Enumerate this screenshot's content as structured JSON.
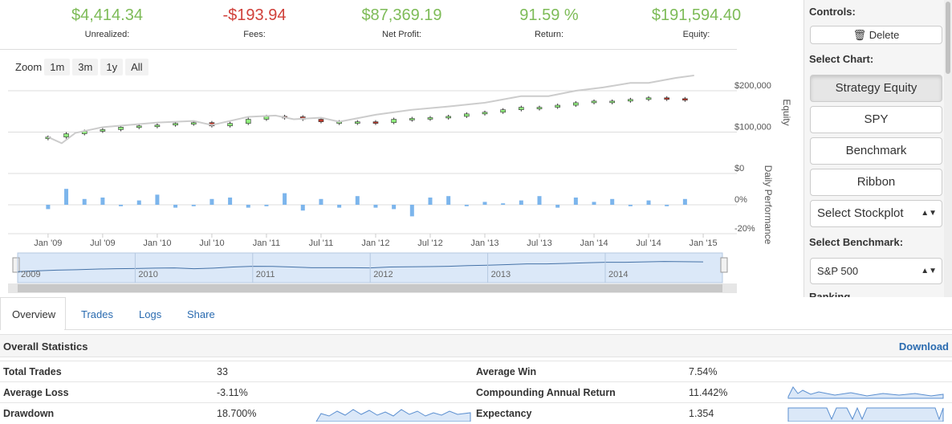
{
  "stats": [
    {
      "value": "$4,414.34",
      "label": "Unrealized:"
    },
    {
      "value": "-$193.94",
      "label": "Fees:"
    },
    {
      "value": "$87,369.19",
      "label": "Net Profit:"
    },
    {
      "value": "91.59 %",
      "label": "Return:"
    },
    {
      "value": "$191,594.40",
      "label": "Equity:"
    }
  ],
  "zoom": {
    "label": "Zoom",
    "buttons": [
      "1m",
      "3m",
      "1y",
      "All"
    ]
  },
  "chart_data": {
    "type": "candlestick",
    "ylabel": "Equity",
    "y2label": "Daily Performance",
    "xlim": [
      -4.4,
      75.7
    ],
    "xticks": [
      {
        "value": 0,
        "label": "Jan '09"
      },
      {
        "value": 6,
        "label": "Jul '09"
      },
      {
        "value": 12,
        "label": "Jan '10"
      },
      {
        "value": 18,
        "label": "Jul '10"
      },
      {
        "value": 24,
        "label": "Jan '11"
      },
      {
        "value": 30,
        "label": "Jul '11"
      },
      {
        "value": 36,
        "label": "Jan '12"
      },
      {
        "value": 42,
        "label": "Jul '12"
      },
      {
        "value": 48,
        "label": "Jan '13"
      },
      {
        "value": 54,
        "label": "Jul '13"
      },
      {
        "value": 60,
        "label": "Jan '14"
      },
      {
        "value": 66,
        "label": "Jul '14"
      },
      {
        "value": 72,
        "label": "Jan '15"
      }
    ],
    "ylim": [
      0,
      240000
    ],
    "yticks": [
      {
        "value": 0,
        "label": "$0"
      },
      {
        "value": 100000,
        "label": "$100,000"
      },
      {
        "value": 200000,
        "label": "$200,000"
      }
    ],
    "y2lim": [
      -20,
      20
    ],
    "y2ticks": [
      {
        "value": 0,
        "label": "0%"
      },
      {
        "value": -20,
        "label": "-20%"
      }
    ],
    "series": [
      {
        "name": "Strategy Equity",
        "color": "#333333",
        "up_color": "#90ed7d",
        "down_color": "#c0392b",
        "x": [
          0,
          2,
          4,
          6,
          8,
          10,
          12,
          14,
          16,
          18,
          20,
          22,
          24,
          26,
          28,
          30,
          32,
          34,
          36,
          38,
          40,
          42,
          44,
          46,
          48,
          50,
          52,
          54,
          56,
          58,
          60,
          62,
          64,
          66,
          68,
          70
        ],
        "values": [
          88000,
          96000,
          102000,
          106000,
          112000,
          115000,
          117000,
          121000,
          123000,
          115000,
          121000,
          131000,
          138000,
          137000,
          131000,
          125000,
          125000,
          125000,
          123000,
          131000,
          133000,
          135000,
          138000,
          144000,
          148000,
          154000,
          160000,
          160000,
          165000,
          171000,
          175000,
          175000,
          179000,
          183000,
          181000,
          179000
        ]
      },
      {
        "name": "Benchmark",
        "color": "#cccccc",
        "x": [
          0,
          1.5,
          3,
          6,
          12,
          16,
          18,
          22,
          25,
          27,
          30,
          32,
          36,
          40,
          44,
          48,
          52,
          55,
          58,
          61,
          64,
          66,
          69,
          71
        ],
        "values": [
          88000,
          73000,
          98000,
          112000,
          123000,
          127000,
          117000,
          137000,
          140000,
          131000,
          135000,
          125000,
          142000,
          154000,
          162000,
          171000,
          187000,
          187000,
          200000,
          208000,
          219000,
          219000,
          231000,
          237000
        ]
      },
      {
        "name": "Daily Performance",
        "color": "#7cb5ec",
        "axis": "y2",
        "x": [
          0,
          2,
          4,
          6,
          8,
          10,
          12,
          14,
          16,
          18,
          20,
          22,
          24,
          26,
          28,
          30,
          32,
          34,
          36,
          38,
          40,
          42,
          44,
          46,
          48,
          50,
          52,
          54,
          56,
          58,
          60,
          62,
          64,
          66,
          68,
          70
        ],
        "values": [
          -3,
          11,
          4,
          5,
          -1,
          3,
          7,
          -2,
          -1,
          4,
          5,
          -2,
          -1,
          8,
          -4,
          4,
          -2,
          6,
          -2,
          -3,
          -8,
          5,
          6,
          -1,
          2,
          1,
          3,
          6,
          -2,
          5,
          2,
          4,
          -1,
          3,
          -1,
          4
        ]
      }
    ],
    "navigator_labels": [
      "2009",
      "2010",
      "2011",
      "2012",
      "2013",
      "2014"
    ]
  },
  "controls": {
    "title": "Controls:",
    "delete": "Delete",
    "select_chart": "Select Chart:",
    "chart_buttons": [
      "Strategy Equity",
      "SPY",
      "Benchmark",
      "Ribbon"
    ],
    "stockplot": "Select Stockplot",
    "select_benchmark": "Select Benchmark:",
    "benchmark": "S&P 500",
    "ranking": "Ranking"
  },
  "tabs": [
    "Overview",
    "Trades",
    "Logs",
    "Share"
  ],
  "statistics": {
    "title": "Overall Statistics",
    "download": "Download",
    "rows": [
      [
        "Total Trades",
        "33",
        "Average Win",
        "7.54%"
      ],
      [
        "Average Loss",
        "-3.11%",
        "Compounding Annual Return",
        "11.442%"
      ],
      [
        "Drawdown",
        "18.700%",
        "Expectancy",
        "1.354"
      ]
    ]
  }
}
